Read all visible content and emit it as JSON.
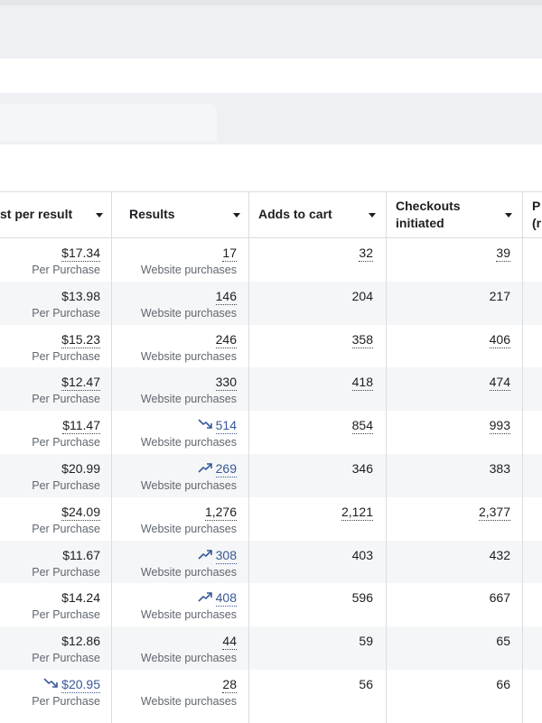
{
  "table": {
    "headers": [
      {
        "lines": [
          "st per result"
        ],
        "sort": true
      },
      {
        "lines": [
          "Results"
        ],
        "sort": true
      },
      {
        "lines": [
          "Adds to cart"
        ],
        "sort": true
      },
      {
        "lines": [
          "Checkouts",
          "initiated"
        ],
        "sort": true
      },
      {
        "lines": [
          "P",
          "(r"
        ],
        "sort": false
      }
    ],
    "rows": [
      [
        {
          "value": "$17.34",
          "sub": "Per Purchase",
          "dotted": true
        },
        {
          "value": "17",
          "sub": "Website purchases",
          "dotted": true
        },
        {
          "value": "32",
          "dotted": true
        },
        {
          "value": "39",
          "dotted": true
        }
      ],
      [
        {
          "value": "$13.98",
          "sub": "Per Purchase"
        },
        {
          "value": "146",
          "sub": "Website purchases",
          "dotted": true
        },
        {
          "value": "204"
        },
        {
          "value": "217"
        }
      ],
      [
        {
          "value": "$15.23",
          "sub": "Per Purchase",
          "dotted": true
        },
        {
          "value": "246",
          "sub": "Website purchases",
          "dotted": true
        },
        {
          "value": "358",
          "dotted": true
        },
        {
          "value": "406",
          "dotted": true
        }
      ],
      [
        {
          "value": "$12.47",
          "sub": "Per Purchase",
          "dotted": true
        },
        {
          "value": "330",
          "sub": "Website purchases",
          "dotted": true
        },
        {
          "value": "418",
          "dotted": true
        },
        {
          "value": "474",
          "dotted": true
        }
      ],
      [
        {
          "value": "$11.47",
          "sub": "Per Purchase",
          "dotted": true
        },
        {
          "value": "514",
          "sub": "Website purchases",
          "trend": "down"
        },
        {
          "value": "854",
          "dotted": true
        },
        {
          "value": "993",
          "dotted": true
        }
      ],
      [
        {
          "value": "$20.99",
          "sub": "Per Purchase"
        },
        {
          "value": "269",
          "sub": "Website purchases",
          "trend": "up"
        },
        {
          "value": "346"
        },
        {
          "value": "383"
        }
      ],
      [
        {
          "value": "$24.09",
          "sub": "Per Purchase",
          "dotted": true
        },
        {
          "value": "1,276",
          "sub": "Website purchases",
          "dotted": true
        },
        {
          "value": "2,121",
          "dotted": true
        },
        {
          "value": "2,377",
          "dotted": true
        }
      ],
      [
        {
          "value": "$11.67",
          "sub": "Per Purchase"
        },
        {
          "value": "308",
          "sub": "Website purchases",
          "trend": "up"
        },
        {
          "value": "403"
        },
        {
          "value": "432"
        }
      ],
      [
        {
          "value": "$14.24",
          "sub": "Per Purchase"
        },
        {
          "value": "408",
          "sub": "Website purchases",
          "trend": "up"
        },
        {
          "value": "596"
        },
        {
          "value": "667"
        }
      ],
      [
        {
          "value": "$12.86",
          "sub": "Per Purchase"
        },
        {
          "value": "44",
          "sub": "Website purchases",
          "dotted": true
        },
        {
          "value": "59"
        },
        {
          "value": "65"
        }
      ],
      [
        {
          "value": "$20.95",
          "sub": "Per Purchase",
          "trend": "down"
        },
        {
          "value": "28",
          "sub": "Website purchases",
          "dotted": true
        },
        {
          "value": "56"
        },
        {
          "value": "66"
        }
      ]
    ]
  }
}
